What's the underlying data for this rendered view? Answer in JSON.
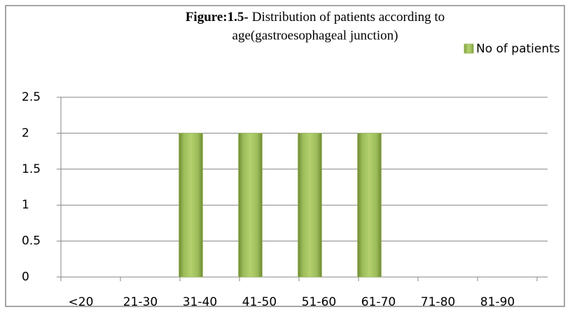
{
  "chart_data": {
    "type": "bar",
    "title_bold": "Figure:1.5-",
    "title_lines": [
      "Distribution of patients according to",
      "age(gastroesophageal junction)"
    ],
    "categories": [
      "<20",
      "21-30",
      "31-40",
      "41-50",
      "51-60",
      "61-70",
      "71-80",
      "81-90"
    ],
    "series": [
      {
        "name": "No of patients",
        "color": "#9bbb59",
        "values": [
          0,
          0,
          2,
          2,
          2,
          2,
          0,
          0
        ]
      }
    ],
    "ylim": [
      0,
      2.5
    ],
    "yticks": [
      0,
      0.5,
      1,
      1.5,
      2,
      2.5
    ],
    "grid": true,
    "legend": "top-right"
  }
}
